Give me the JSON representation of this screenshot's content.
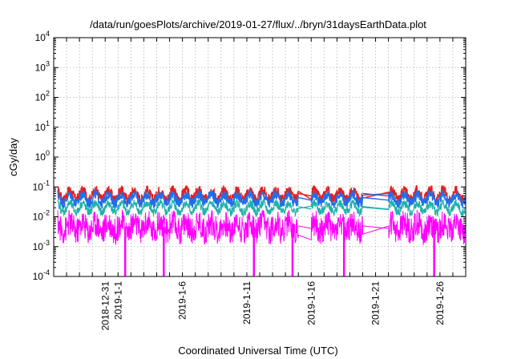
{
  "chart_data": {
    "type": "line",
    "title": "/data/run/goesPlots/archive/2019-01-27/flux/../bryn/31daysEarthData.plot",
    "xlabel": "Coordinated Universal Time (UTC)",
    "ylabel": "cGy/day",
    "y_scale": "log",
    "ylim": [
      0.0001,
      10000
    ],
    "y_ticks": [
      {
        "value": 0.0001,
        "base": "10",
        "exp": "-4"
      },
      {
        "value": 0.001,
        "base": "10",
        "exp": "-3"
      },
      {
        "value": 0.01,
        "base": "10",
        "exp": "-2"
      },
      {
        "value": 0.1,
        "base": "10",
        "exp": "-1"
      },
      {
        "value": 1,
        "base": "10",
        "exp": "0"
      },
      {
        "value": 10,
        "base": "10",
        "exp": "1"
      },
      {
        "value": 100,
        "base": "10",
        "exp": "2"
      },
      {
        "value": 1000,
        "base": "10",
        "exp": "3"
      },
      {
        "value": 10000,
        "base": "10",
        "exp": "4"
      }
    ],
    "xlim": [
      "2018-12-27",
      "2019-01-28"
    ],
    "x_ticks": [
      "2018-12-31",
      "2019-1-1",
      "2019-1-6",
      "2019-1-11",
      "2019-1-16",
      "2019-1-21",
      "2019-1-26"
    ],
    "x_tick_dates": [
      "2018-12-31",
      "2019-01-01",
      "2019-01-06",
      "2019-01-11",
      "2019-01-16",
      "2019-01-21",
      "2019-01-26"
    ],
    "x_gridlines": [
      "2018-12-28",
      "2018-12-29",
      "2018-12-30",
      "2018-12-31",
      "2019-01-01",
      "2019-01-02",
      "2019-01-03",
      "2019-01-04",
      "2019-01-05",
      "2019-01-06",
      "2019-01-07",
      "2019-01-08",
      "2019-01-09",
      "2019-01-10",
      "2019-01-11",
      "2019-01-12",
      "2019-01-13",
      "2019-01-14",
      "2019-01-15",
      "2019-01-16",
      "2019-01-17",
      "2019-01-18",
      "2019-01-19",
      "2019-01-20",
      "2019-01-21",
      "2019-01-22",
      "2019-01-23",
      "2019-01-24",
      "2019-01-25",
      "2019-01-26",
      "2019-01-27"
    ],
    "grid": true,
    "data_gaps": [
      [
        "2019-01-15",
        "2019-01-16"
      ],
      [
        "2019-01-20",
        "2019-01-22"
      ]
    ],
    "series": [
      {
        "color": "#e81c1c",
        "typical": 0.055,
        "spike": 0.095,
        "width": 1.4
      },
      {
        "color": "#1f6fe8",
        "typical": 0.04,
        "spike": 0.07,
        "width": 1.4
      },
      {
        "color": "#20b2aa",
        "typical": 0.02,
        "spike": 0.032,
        "width": 1.2
      },
      {
        "color": "#ff00ff",
        "typical": 0.0045,
        "spike": 0.02,
        "width": 1.0
      }
    ],
    "magenta_dropouts": [
      "2019-01-01",
      "2019-01-04",
      "2019-01-11",
      "2019-01-14",
      "2019-01-18",
      "2019-01-25"
    ],
    "dropout_value": 0.0001
  }
}
